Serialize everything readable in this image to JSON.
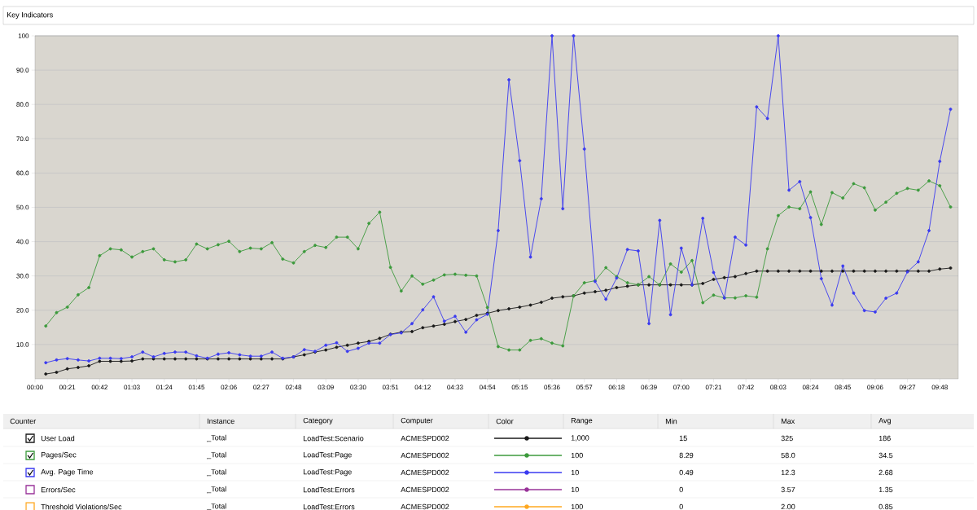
{
  "chart_data": {
    "type": "line",
    "title": "Key Indicators",
    "x": [
      7,
      14,
      21,
      28,
      35,
      42,
      49,
      56,
      63,
      70,
      77,
      84,
      91,
      98,
      105,
      112,
      119,
      126,
      133,
      140,
      147,
      154,
      161,
      168,
      175,
      182,
      189,
      196,
      203,
      210,
      217,
      224,
      231,
      238,
      245,
      252,
      259,
      266,
      273,
      280,
      287,
      294,
      301,
      308,
      315,
      322,
      329,
      336,
      343,
      350,
      357,
      364,
      371,
      378,
      385,
      392,
      399,
      406,
      413,
      420,
      427,
      434,
      441,
      448,
      455,
      462,
      469,
      476,
      483,
      490,
      497,
      504,
      511,
      518,
      525,
      532,
      539,
      546,
      553,
      560,
      567,
      574,
      581,
      588,
      595
    ],
    "series": [
      {
        "name": "User Load",
        "color": "#1a1a1a",
        "values": [
          1.4,
          1.9,
          2.9,
          3.3,
          3.8,
          5.1,
          5.1,
          5.1,
          5.2,
          5.8,
          5.8,
          5.8,
          5.8,
          5.8,
          5.8,
          5.8,
          5.8,
          5.8,
          5.8,
          5.8,
          5.8,
          5.8,
          5.8,
          6.4,
          7.0,
          7.8,
          8.4,
          9.2,
          9.8,
          10.4,
          10.9,
          11.8,
          13.0,
          13.6,
          13.8,
          14.9,
          15.4,
          15.9,
          16.7,
          17.3,
          18.5,
          19.1,
          19.9,
          20.4,
          20.9,
          21.5,
          22.3,
          23.5,
          23.9,
          24.2,
          25.0,
          25.4,
          25.8,
          26.6,
          27.0,
          27.4,
          27.4,
          27.4,
          27.4,
          27.4,
          27.4,
          27.8,
          29.0,
          29.5,
          29.8,
          30.7,
          31.4,
          31.4,
          31.4,
          31.4,
          31.4,
          31.4,
          31.4,
          31.4,
          31.4,
          31.4,
          31.4,
          31.4,
          31.4,
          31.4,
          31.4,
          31.4,
          31.4,
          32.0,
          32.3
        ]
      },
      {
        "name": "Pages/Sec",
        "color": "#3c9a3c",
        "values": [
          15.4,
          19.3,
          20.9,
          24.5,
          26.6,
          35.9,
          37.9,
          37.6,
          35.5,
          37.1,
          37.9,
          34.7,
          34.1,
          34.7,
          39.3,
          37.9,
          39.1,
          40.1,
          37.1,
          38.1,
          37.9,
          39.7,
          34.9,
          33.8,
          37.1,
          38.9,
          38.3,
          41.3,
          41.3,
          37.9,
          45.3,
          48.6,
          32.5,
          25.6,
          30.0,
          27.6,
          28.8,
          30.3,
          30.5,
          30.2,
          30.0,
          20.8,
          9.4,
          8.4,
          8.4,
          11.2,
          11.7,
          10.4,
          9.6,
          24.2,
          28.0,
          28.6,
          32.4,
          29.8,
          28.0,
          27.4,
          29.8,
          27.4,
          33.5,
          31.1,
          34.5,
          22.2,
          24.4,
          23.6,
          23.6,
          24.2,
          23.8,
          37.9,
          47.6,
          50.1,
          49.6,
          54.5,
          45.0,
          54.3,
          52.7,
          56.9,
          55.7,
          49.2,
          51.5,
          54.1,
          55.5,
          55.0,
          57.7,
          56.3,
          50.1
        ]
      },
      {
        "name": "Avg. Page Time",
        "color": "#3a3af0",
        "values": [
          4.7,
          5.5,
          5.9,
          5.5,
          5.2,
          6.0,
          6.0,
          5.9,
          6.4,
          7.8,
          6.4,
          7.4,
          7.8,
          7.8,
          6.7,
          6.0,
          7.2,
          7.6,
          7.0,
          6.6,
          6.6,
          7.8,
          6.0,
          6.4,
          8.5,
          8.0,
          9.8,
          10.5,
          8.0,
          8.9,
          10.4,
          10.4,
          12.9,
          13.4,
          16.1,
          20.1,
          23.9,
          16.8,
          18.2,
          13.6,
          17.2,
          18.8,
          43.2,
          87.2,
          63.6,
          35.5,
          52.5,
          100,
          49.6,
          100,
          67.0,
          28.4,
          23.2,
          29.4,
          37.7,
          37.3,
          16.1,
          46.2,
          18.7,
          38.1,
          27.4,
          46.8,
          31.0,
          23.6,
          41.3,
          39.0,
          79.3,
          75.9,
          100,
          55.0,
          57.5,
          47.0,
          29.2,
          21.5,
          32.9,
          25.0,
          19.9,
          19.5,
          23.5,
          25.0,
          31.2,
          34.1,
          43.2,
          63.4,
          78.6
        ]
      },
      {
        "name": "Errors/Sec",
        "color": "#993399",
        "values": [
          null,
          null,
          null,
          null,
          null,
          null,
          null,
          null,
          null,
          null,
          null,
          null,
          null,
          null,
          null,
          null,
          null,
          null,
          null,
          null,
          null,
          null,
          null,
          null,
          null,
          null,
          null,
          null,
          null,
          null,
          null,
          null,
          null,
          null,
          null,
          null,
          null,
          null,
          null,
          null,
          null,
          null,
          null,
          null,
          null,
          null,
          null,
          null,
          null,
          null,
          null,
          null,
          null,
          null,
          null,
          null,
          null,
          null,
          null,
          null,
          null,
          null,
          null,
          null,
          null,
          null,
          null,
          null,
          null,
          null,
          null,
          null,
          null,
          null,
          null,
          null,
          null,
          null,
          null,
          null,
          null,
          null,
          null,
          null,
          null
        ]
      },
      {
        "name": "Threshold Violations/Sec",
        "color": "#ffa820",
        "values": [
          null,
          null,
          null,
          null,
          null,
          null,
          null,
          null,
          null,
          null,
          null,
          null,
          null,
          null,
          null,
          null,
          null,
          null,
          null,
          null,
          null,
          null,
          null,
          null,
          null,
          null,
          null,
          null,
          null,
          null,
          null,
          null,
          null,
          null,
          null,
          null,
          null,
          null,
          null,
          null,
          null,
          null,
          null,
          null,
          null,
          null,
          null,
          null,
          null,
          null,
          null,
          null,
          null,
          null,
          null,
          null,
          null,
          null,
          null,
          null,
          null,
          null,
          null,
          null,
          null,
          null,
          null,
          null,
          null,
          null,
          null,
          null,
          null,
          null,
          null,
          null,
          null,
          null,
          null,
          null,
          null,
          null,
          null,
          null,
          null
        ]
      }
    ],
    "xlim": [
      0,
      600
    ],
    "ylim": [
      0,
      100
    ],
    "xticks": [
      {
        "value": 0,
        "label": "00:00"
      },
      {
        "value": 21,
        "label": "00:21"
      },
      {
        "value": 42,
        "label": "00:42"
      },
      {
        "value": 63,
        "label": "01:03"
      },
      {
        "value": 84,
        "label": "01:24"
      },
      {
        "value": 105,
        "label": "01:45"
      },
      {
        "value": 126,
        "label": "02:06"
      },
      {
        "value": 147,
        "label": "02:27"
      },
      {
        "value": 168,
        "label": "02:48"
      },
      {
        "value": 189,
        "label": "03:09"
      },
      {
        "value": 210,
        "label": "03:30"
      },
      {
        "value": 231,
        "label": "03:51"
      },
      {
        "value": 252,
        "label": "04:12"
      },
      {
        "value": 273,
        "label": "04:33"
      },
      {
        "value": 294,
        "label": "04:54"
      },
      {
        "value": 315,
        "label": "05:15"
      },
      {
        "value": 336,
        "label": "05:36"
      },
      {
        "value": 357,
        "label": "05:57"
      },
      {
        "value": 378,
        "label": "06:18"
      },
      {
        "value": 399,
        "label": "06:39"
      },
      {
        "value": 420,
        "label": "07:00"
      },
      {
        "value": 441,
        "label": "07:21"
      },
      {
        "value": 462,
        "label": "07:42"
      },
      {
        "value": 483,
        "label": "08:03"
      },
      {
        "value": 504,
        "label": "08:24"
      },
      {
        "value": 525,
        "label": "08:45"
      },
      {
        "value": 546,
        "label": "09:06"
      },
      {
        "value": 567,
        "label": "09:27"
      },
      {
        "value": 588,
        "label": "09:48"
      }
    ],
    "yticks": [
      {
        "value": 10,
        "label": "10.0"
      },
      {
        "value": 20,
        "label": "20.0"
      },
      {
        "value": 30,
        "label": "30.0"
      },
      {
        "value": 40,
        "label": "40.0"
      },
      {
        "value": 50,
        "label": "50.0"
      },
      {
        "value": 60,
        "label": "60.0"
      },
      {
        "value": 70,
        "label": "70.0"
      },
      {
        "value": 80,
        "label": "80.0"
      },
      {
        "value": 90,
        "label": "90.0"
      },
      100
    ],
    "grid": "y",
    "marker": "circle",
    "legend": "bottom",
    "annotations": [
      "Counter",
      "Instance",
      "Category",
      "Computer",
      "Color",
      "Range",
      "Min",
      "Max",
      "Avg",
      "_Total",
      "LoadTest:Scenario",
      "ACMESPD002",
      "1,000",
      "15",
      "325",
      "186",
      "_Total",
      "LoadTest:Page",
      "ACMESPD002",
      "100",
      "8.29",
      "58.0",
      "34.5",
      "_Total",
      "LoadTest:Page",
      "ACMESPD002",
      "10",
      "0.49",
      "12.3",
      "2.68",
      "_Total",
      "LoadTest:Errors",
      "ACMESPD002",
      "10",
      "0",
      "3.57",
      "1.35",
      "_Total",
      "LoadTest:Errors",
      "ACMESPD002",
      "100",
      "0",
      "2.00",
      "0.85"
    ]
  }
}
